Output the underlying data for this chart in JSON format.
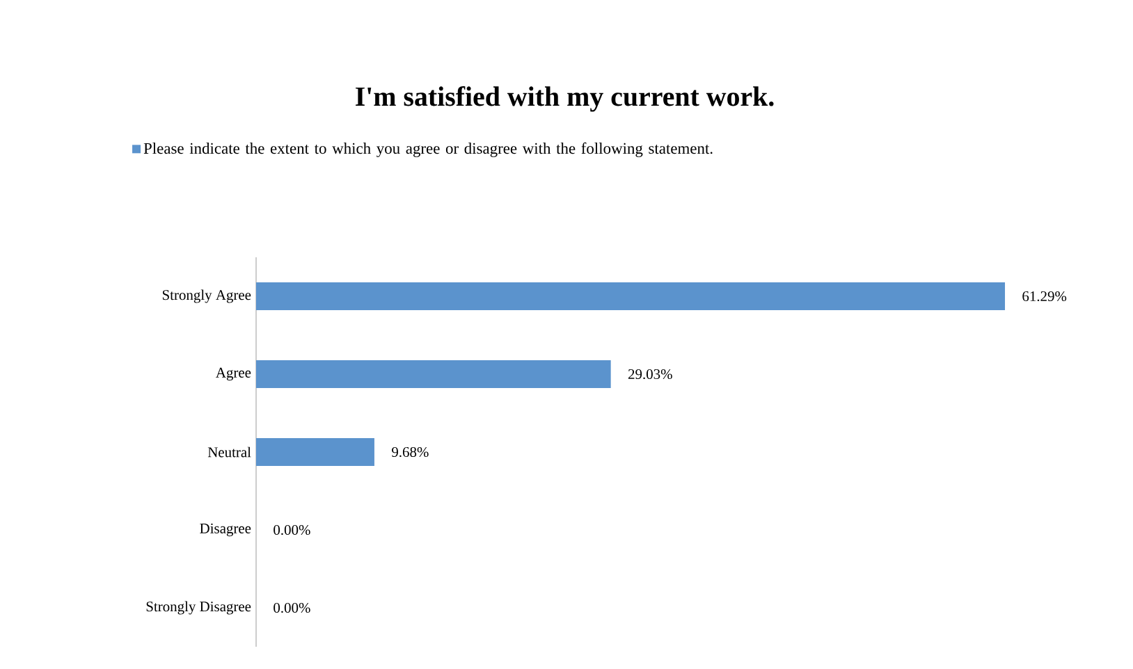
{
  "chart_data": {
    "type": "bar",
    "orientation": "horizontal",
    "title": "I'm satisfied with my current work.",
    "categories": [
      "Strongly Agree",
      "Agree",
      "Neutral",
      "Disagree",
      "Strongly Disagree"
    ],
    "series": [
      {
        "name": "Please indicate the extent to which you agree or disagree with the following statement.",
        "color": "#5b93cd",
        "values": [
          61.29,
          29.03,
          9.68,
          0,
          0
        ],
        "value_labels": [
          "61.29%",
          "29.03%",
          "9.68%",
          "0.00%",
          "0.00%"
        ]
      }
    ],
    "legend": "top"
  }
}
